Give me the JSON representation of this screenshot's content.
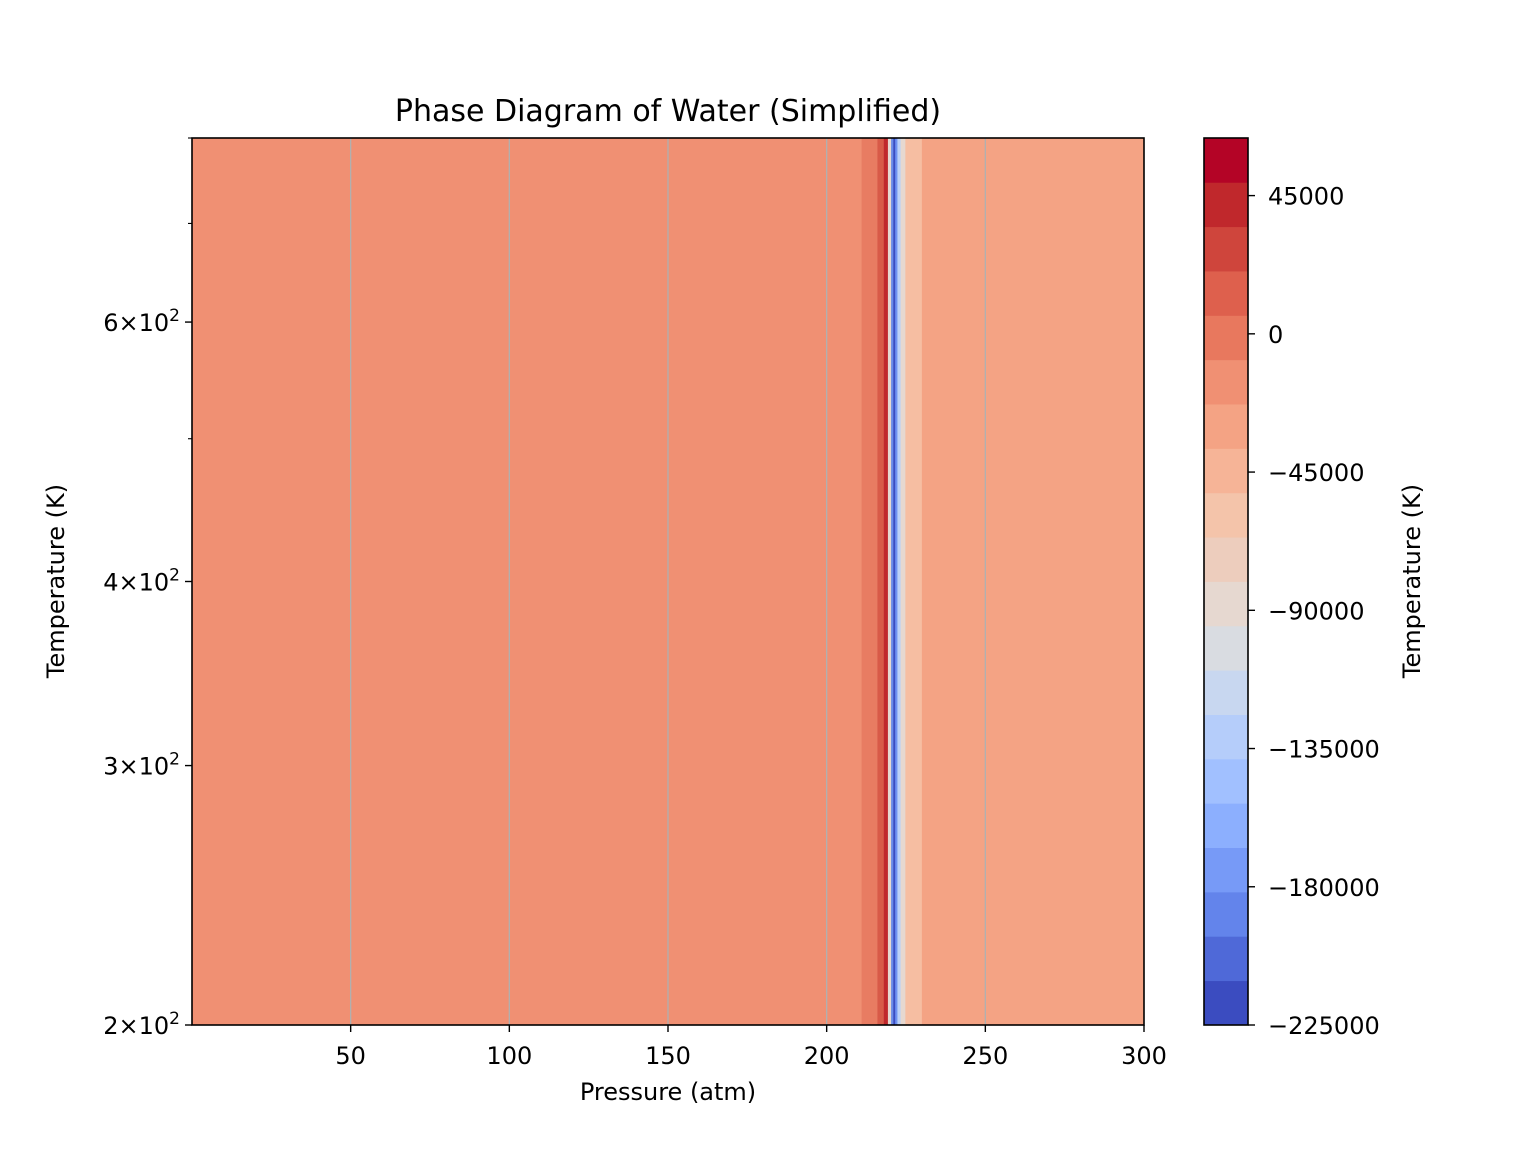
{
  "chart_data": {
    "type": "heatmap",
    "title": "Phase Diagram of Water (Simplified)",
    "xlabel": "Pressure (atm)",
    "ylabel": "Temperature (K)",
    "xlim": [
      0,
      300
    ],
    "ylim": [
      200,
      800
    ],
    "y_scale": "log",
    "x_ticks": [
      50,
      100,
      150,
      200,
      250,
      300
    ],
    "y_ticks": [
      {
        "value": 200,
        "mantissa": "2",
        "base": "10",
        "exp": "2"
      },
      {
        "value": 300,
        "mantissa": "3",
        "base": "10",
        "exp": "2"
      },
      {
        "value": 400,
        "mantissa": "4",
        "base": "10",
        "exp": "2"
      },
      {
        "value": 600,
        "mantissa": "6",
        "base": "10",
        "exp": "2"
      }
    ],
    "y_minor_ticks": [
      500,
      700,
      800
    ],
    "grid": "vertical lines at x ticks",
    "bands": [
      {
        "x0": 0,
        "x1": 211,
        "color": "#f09073"
      },
      {
        "x0": 211,
        "x1": 216,
        "color": "#e87c62"
      },
      {
        "x0": 216,
        "x1": 218,
        "color": "#d85a48"
      },
      {
        "x0": 218,
        "x1": 219.3,
        "color": "#c0282c"
      },
      {
        "x0": 219.3,
        "x1": 220.3,
        "color": "#e6d8d0"
      },
      {
        "x0": 220.3,
        "x1": 221,
        "color": "#6a8be9"
      },
      {
        "x0": 221,
        "x1": 221.6,
        "color": "#3b4cc0"
      },
      {
        "x0": 221.6,
        "x1": 222.3,
        "color": "#6f92f3"
      },
      {
        "x0": 222.3,
        "x1": 223.3,
        "color": "#bcd1f6"
      },
      {
        "x0": 223.3,
        "x1": 224.8,
        "color": "#e6d8d0"
      },
      {
        "x0": 224.8,
        "x1": 230,
        "color": "#f6bea2"
      },
      {
        "x0": 230,
        "x1": 300,
        "color": "#f4a384"
      }
    ],
    "colorbar": {
      "label": "Temperature (K)",
      "min": -225000,
      "max": 63750,
      "levels": 20,
      "tick_values": [
        45000,
        0,
        -45000,
        -90000,
        -135000,
        -180000,
        -225000
      ],
      "tick_labels": [
        "45000",
        "0",
        "−45000",
        "−90000",
        "−135000",
        "−180000",
        "−225000"
      ],
      "colors": [
        "#3b4cc0",
        "#4f69d8",
        "#6384eb",
        "#779af7",
        "#8caffe",
        "#a1c0ff",
        "#b5cdfa",
        "#c8d7f0",
        "#d9dce1",
        "#e6d8d0",
        "#edcdbd",
        "#f4c4aa",
        "#f6b497",
        "#f4a384",
        "#f09073",
        "#e8785e",
        "#de604d",
        "#cf453c",
        "#c0282c",
        "#b40426"
      ]
    },
    "gridline_color": "#b0b0b0"
  }
}
